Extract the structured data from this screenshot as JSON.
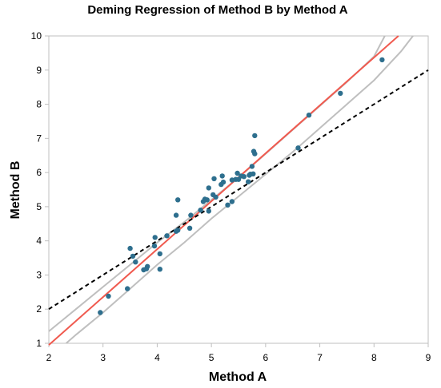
{
  "chart_data": {
    "type": "scatter",
    "title": "Deming Regression of Method B by Method A",
    "xlabel": "Method A",
    "ylabel": "Method B",
    "xlim": [
      2,
      9
    ],
    "ylim": [
      1,
      10
    ],
    "xticks": [
      "2",
      "3",
      "4",
      "5",
      "6",
      "7",
      "8",
      "9"
    ],
    "yticks": [
      "1",
      "2",
      "3",
      "4",
      "5",
      "6",
      "7",
      "8",
      "9",
      "10"
    ],
    "grid": false,
    "legend": "none",
    "colors": {
      "points": "#2e6f8e",
      "regression": "#f05a4f",
      "confidence": "#bfbfbf",
      "identity": "#000000"
    },
    "series": [
      {
        "kind": "points",
        "x": [
          2.95,
          3.1,
          3.45,
          3.5,
          3.55,
          3.6,
          3.75,
          3.8,
          3.82,
          3.95,
          3.96,
          4.05,
          4.05,
          4.18,
          4.35,
          4.35,
          4.38,
          4.38,
          4.6,
          4.62,
          4.8,
          4.85,
          4.88,
          4.92,
          4.95,
          4.95,
          5.03,
          5.05,
          5.08,
          5.18,
          5.2,
          5.22,
          5.3,
          5.38,
          5.38,
          5.45,
          5.48,
          5.5,
          5.55,
          5.6,
          5.68,
          5.7,
          5.72,
          5.75,
          5.77,
          5.78,
          5.8,
          5.8,
          6.6,
          6.8,
          7.38,
          8.15
        ],
        "y": [
          1.9,
          2.38,
          2.6,
          3.78,
          3.55,
          3.38,
          3.15,
          3.18,
          3.25,
          3.85,
          4.1,
          3.17,
          3.62,
          4.15,
          4.28,
          4.75,
          5.2,
          4.31,
          4.37,
          4.75,
          4.9,
          5.15,
          5.22,
          5.2,
          5.55,
          4.87,
          5.35,
          5.82,
          5.28,
          5.65,
          5.9,
          5.72,
          5.05,
          5.15,
          5.78,
          5.8,
          5.98,
          5.8,
          5.9,
          5.88,
          5.73,
          5.92,
          5.95,
          6.18,
          5.96,
          6.62,
          6.55,
          7.08,
          6.72,
          7.68,
          8.32,
          9.3
        ]
      },
      {
        "kind": "regression-line",
        "x": [
          2.0,
          8.45
        ],
        "y": [
          0.95,
          10.0
        ]
      },
      {
        "kind": "upper-confidence-band",
        "x": [
          2.0,
          2.5,
          3.0,
          3.5,
          4.0,
          4.5,
          5.0,
          5.5,
          6.0,
          6.5,
          7.0,
          7.5,
          8.0,
          8.2
        ],
        "y": [
          1.35,
          2.0,
          2.65,
          3.3,
          3.95,
          4.55,
          5.2,
          5.85,
          6.55,
          7.25,
          7.95,
          8.65,
          9.4,
          10.0
        ]
      },
      {
        "kind": "lower-confidence-band",
        "x": [
          2.32,
          2.5,
          3.0,
          3.5,
          4.0,
          4.5,
          5.0,
          5.5,
          6.0,
          6.5,
          7.0,
          7.5,
          8.0,
          8.5,
          8.72
        ],
        "y": [
          1.0,
          1.25,
          1.9,
          2.6,
          3.3,
          3.95,
          4.65,
          5.3,
          5.95,
          6.6,
          7.3,
          8.0,
          8.7,
          9.55,
          10.0
        ]
      },
      {
        "kind": "identity-line",
        "x": [
          2.0,
          9.0
        ],
        "y": [
          2.0,
          9.0
        ]
      }
    ]
  }
}
